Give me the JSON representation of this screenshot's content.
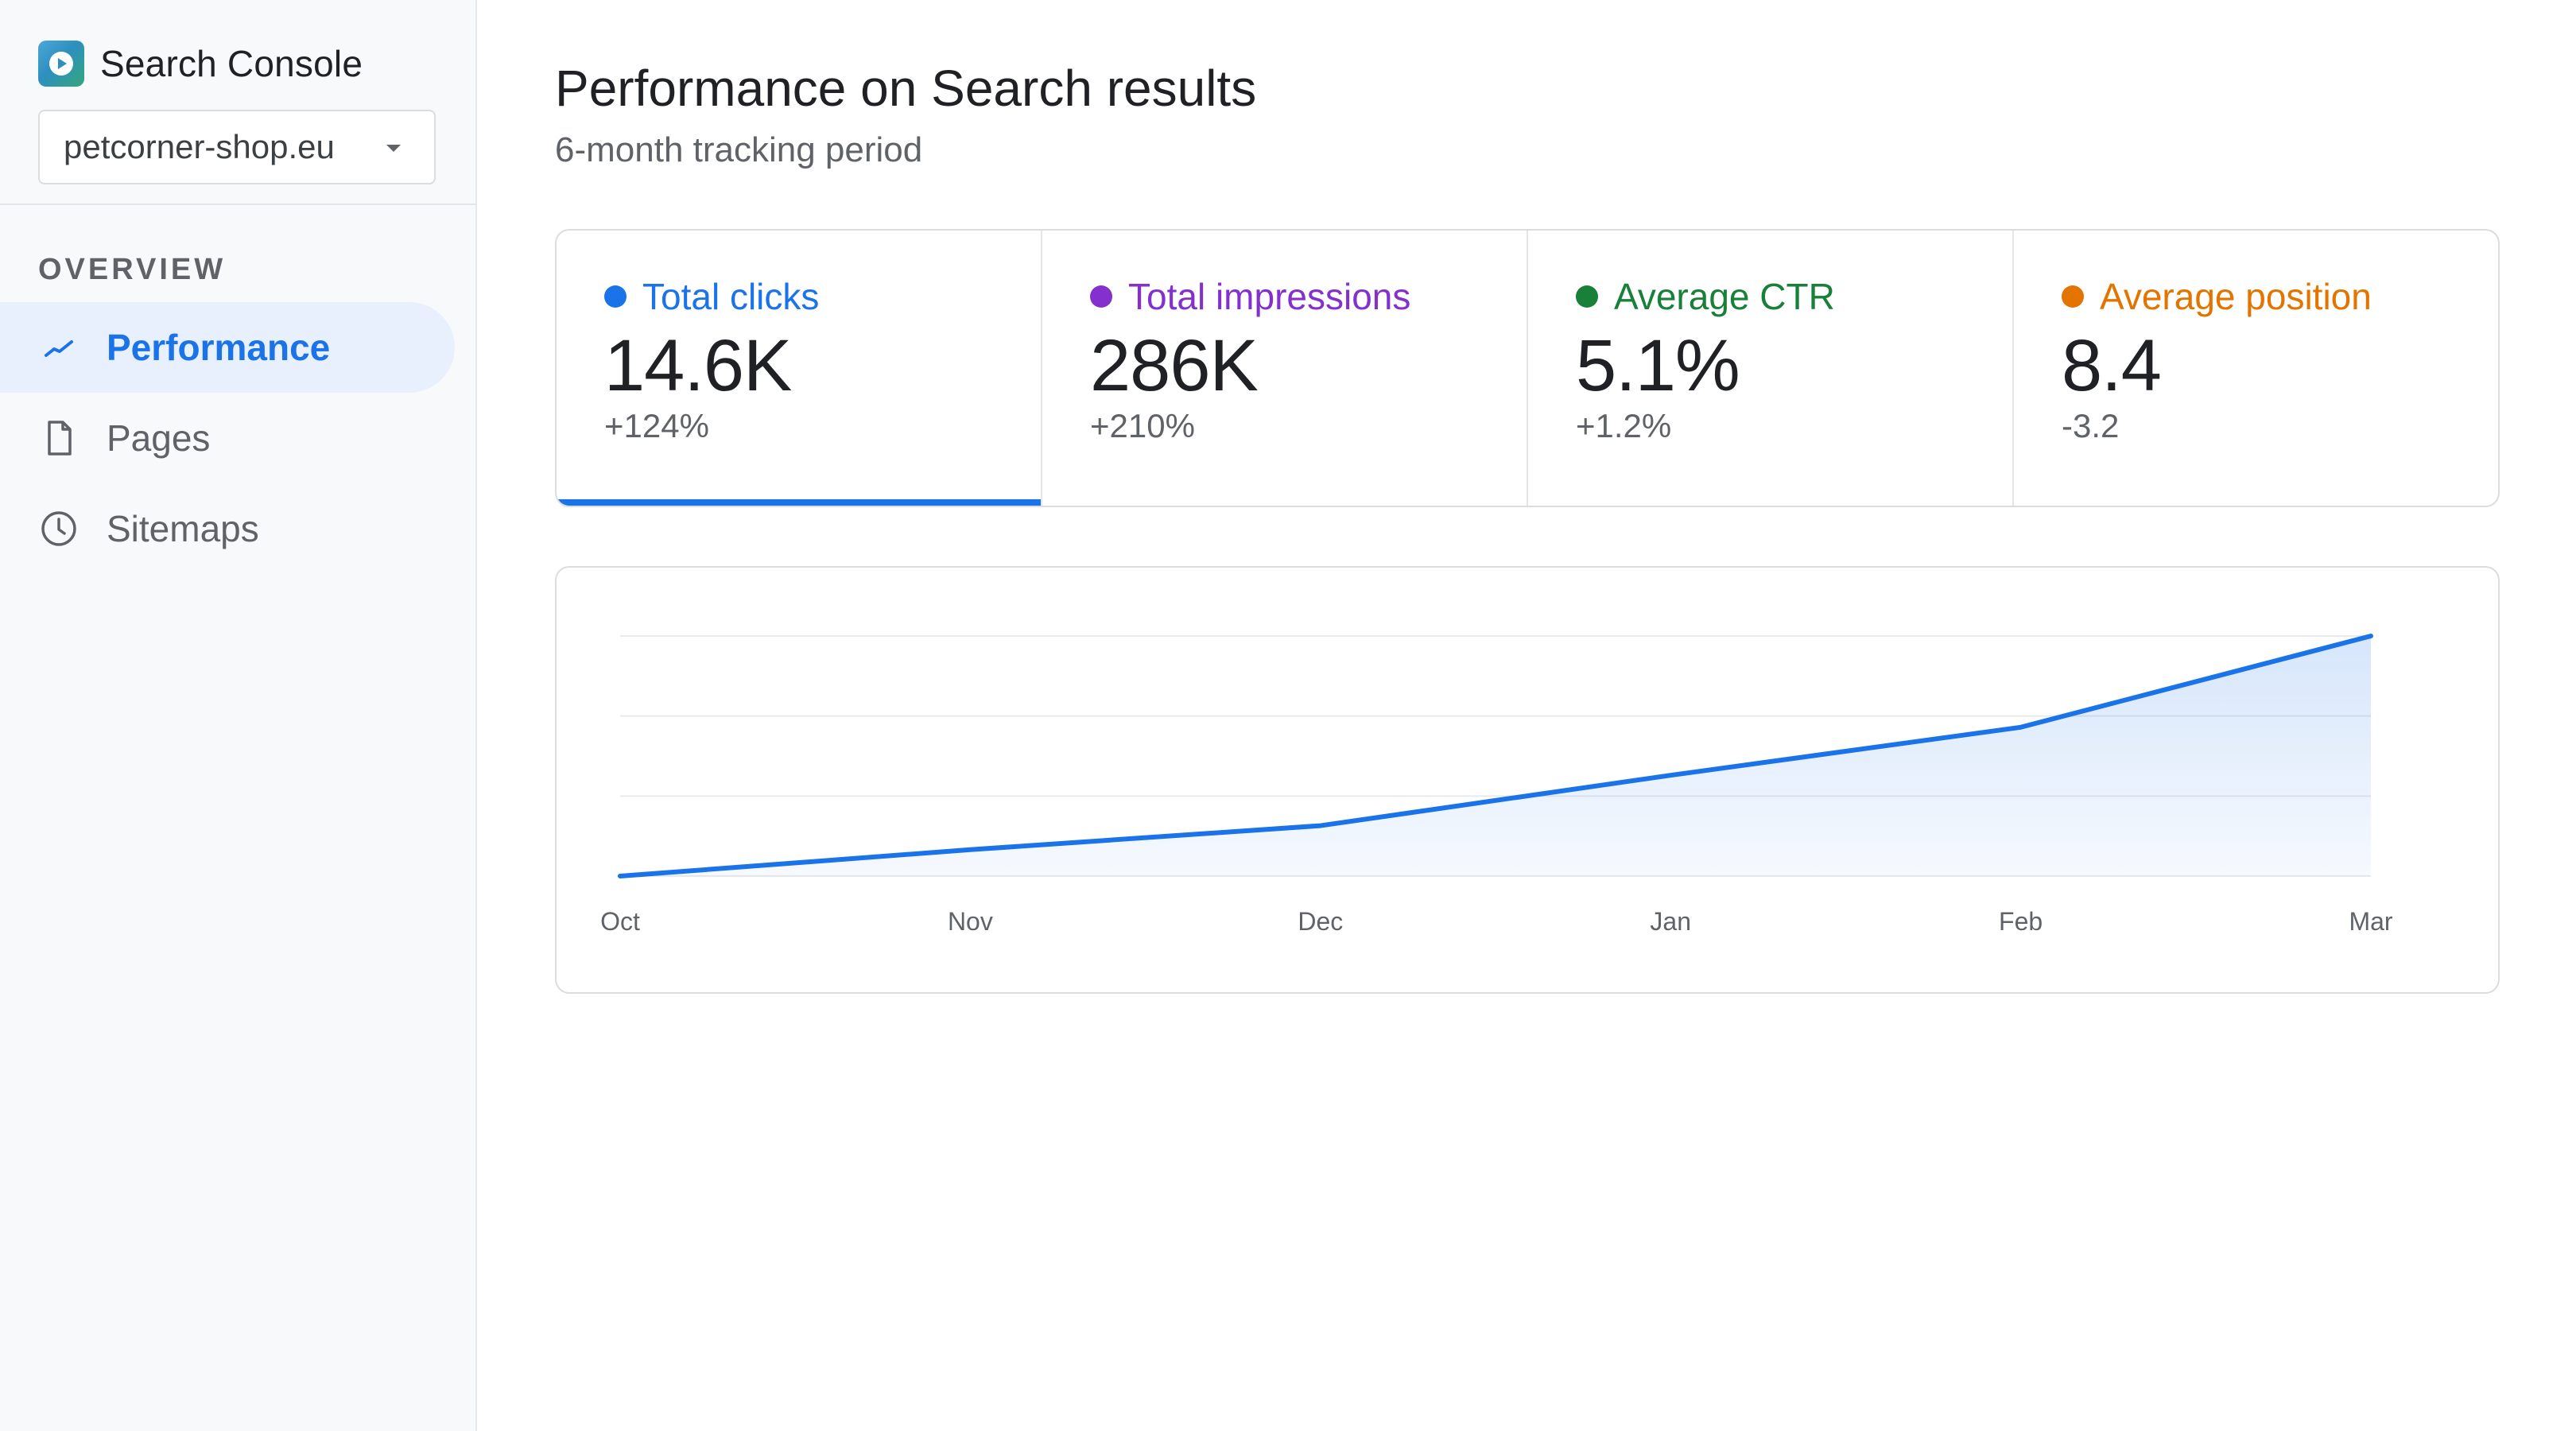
{
  "app": {
    "name": "Search Console",
    "property": "petcorner-shop.eu"
  },
  "sidebar": {
    "section_label": "OVERVIEW",
    "items": [
      {
        "label": "Performance",
        "icon": "trend-icon",
        "active": true
      },
      {
        "label": "Pages",
        "icon": "page-icon",
        "active": false
      },
      {
        "label": "Sitemaps",
        "icon": "clock-icon",
        "active": false
      }
    ]
  },
  "main": {
    "title": "Performance on Search results",
    "subtitle": "6-month tracking period"
  },
  "metrics": [
    {
      "label": "Total clicks",
      "value": "14.6K",
      "change": "+124%",
      "color": "#1a73e8",
      "selected": true
    },
    {
      "label": "Total impressions",
      "value": "286K",
      "change": "+210%",
      "color": "#8430ce",
      "selected": false
    },
    {
      "label": "Average CTR",
      "value": "5.1%",
      "change": "+1.2%",
      "color": "#188038",
      "selected": false
    },
    {
      "label": "Average position",
      "value": "8.4",
      "change": "-3.2",
      "color": "#e37400",
      "selected": false
    }
  ],
  "chart_data": {
    "type": "area",
    "categories": [
      "Oct",
      "Nov",
      "Dec",
      "Jan",
      "Feb",
      "Mar"
    ],
    "series": [
      {
        "values": [
          0,
          11,
          21,
          42,
          62,
          100
        ],
        "color": "#1a73e8"
      }
    ],
    "ylim": [
      0,
      100
    ],
    "grid": true,
    "title": "",
    "xlabel": "",
    "ylabel": ""
  }
}
